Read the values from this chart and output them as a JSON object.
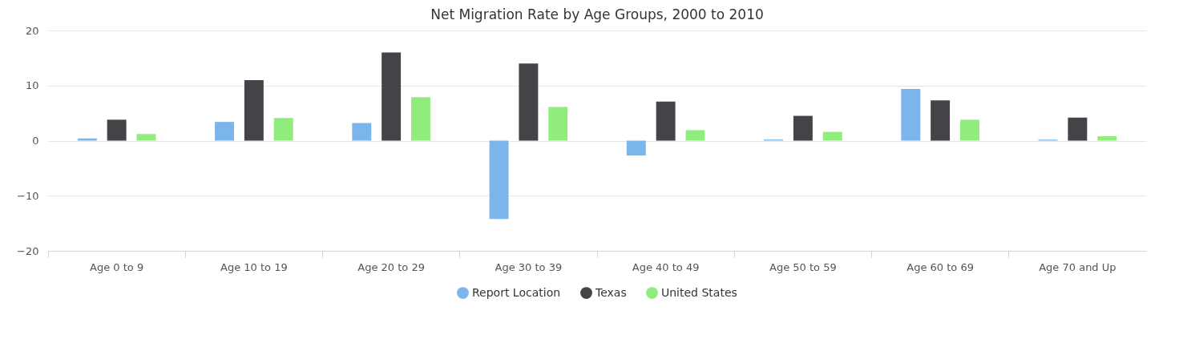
{
  "chart_data": {
    "type": "bar",
    "title": "Net Migration Rate by Age Groups, 2000 to 2010",
    "categories": [
      "Age 0 to 9",
      "Age 10 to 19",
      "Age 20 to 29",
      "Age 30 to 39",
      "Age 40 to 49",
      "Age 50 to 59",
      "Age 60 to 69",
      "Age 70 and Up"
    ],
    "series": [
      {
        "name": "Report Location",
        "color": "#7cb5ec",
        "values": [
          0.4,
          3.4,
          3.2,
          -14.2,
          -2.7,
          0.2,
          9.4,
          0.2
        ]
      },
      {
        "name": "Texas",
        "color": "#434348",
        "values": [
          3.8,
          11.0,
          16.0,
          14.0,
          7.1,
          4.5,
          7.3,
          4.2
        ]
      },
      {
        "name": "United States",
        "color": "#90ed7d",
        "values": [
          1.2,
          4.1,
          7.9,
          6.1,
          1.9,
          1.6,
          3.8,
          0.8
        ]
      }
    ],
    "ylim": [
      -20,
      20
    ],
    "yticks": [
      -20,
      -10,
      0,
      10,
      20
    ],
    "grid": "y",
    "legend": "bottom"
  }
}
